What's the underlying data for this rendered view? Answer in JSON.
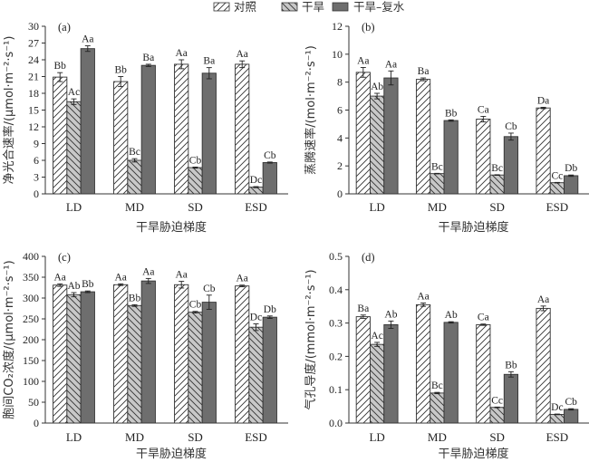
{
  "legend": {
    "items": [
      {
        "label": "对照",
        "pattern": "fwd-hatch",
        "fill": "#ffffff"
      },
      {
        "label": "干旱",
        "pattern": "back-hatch",
        "fill": "#c8c8c8"
      },
      {
        "label": "干旱–复水",
        "pattern": "solid",
        "fill": "#6e6e6e"
      }
    ]
  },
  "colors": {
    "control": "#ffffff",
    "drought": "#c8c8c8",
    "recovery": "#6e6e6e",
    "ink": "#222222"
  },
  "chart_data": [
    {
      "type": "bar",
      "panel_label": "(a)",
      "title": "",
      "xlabel": "干旱胁迫梯度",
      "ylabel": "净光合速率/(μmol·m⁻²·s⁻¹)",
      "ylim": [
        0,
        30
      ],
      "yticks": [
        0,
        3,
        6,
        9,
        12,
        15,
        18,
        21,
        24,
        27,
        30
      ],
      "ytick_labels": [
        "0",
        "3",
        "6",
        "9",
        "12",
        "15",
        "18",
        "21",
        "24",
        "27",
        "30"
      ],
      "categories": [
        "LD",
        "MD",
        "SD",
        "ESD"
      ],
      "grid": false,
      "series": [
        {
          "name": "对照",
          "values": [
            20.9,
            20.1,
            23.2,
            23.2
          ],
          "errors": [
            0.8,
            0.9,
            0.8,
            0.6
          ],
          "labels": [
            "Bb",
            "Bb",
            "Aa",
            "Aa"
          ]
        },
        {
          "name": "干旱",
          "values": [
            16.5,
            6.0,
            4.7,
            1.2
          ],
          "errors": [
            0.5,
            0.3,
            0.1,
            0.1
          ],
          "labels": [
            "Ac",
            "Bc",
            "Cb",
            "Dc"
          ]
        },
        {
          "name": "干旱–复水",
          "values": [
            26.0,
            23.0,
            21.6,
            5.6
          ],
          "errors": [
            0.5,
            0.2,
            1.0,
            0.1
          ],
          "labels": [
            "Aa",
            "Ba",
            "Ba",
            "Cb"
          ]
        }
      ]
    },
    {
      "type": "bar",
      "panel_label": "(b)",
      "title": "",
      "xlabel": "干旱胁迫梯度",
      "ylabel": "蒸腾速率/(mol·m⁻²·s⁻¹)",
      "ylim": [
        0,
        12
      ],
      "yticks": [
        0,
        2,
        4,
        6,
        8,
        10,
        12
      ],
      "ytick_labels": [
        "0",
        "2",
        "4",
        "6",
        "8",
        "10",
        "12"
      ],
      "categories": [
        "LD",
        "MD",
        "SD",
        "ESD"
      ],
      "grid": false,
      "series": [
        {
          "name": "对照",
          "values": [
            8.7,
            8.2,
            5.35,
            6.15
          ],
          "errors": [
            0.35,
            0.1,
            0.2,
            0.05
          ],
          "labels": [
            "Aa",
            "Ba",
            "Ca",
            "Da"
          ]
        },
        {
          "name": "干旱",
          "values": [
            7.0,
            1.45,
            1.35,
            0.8
          ],
          "errors": [
            0.2,
            0.02,
            0.02,
            0.02
          ],
          "labels": [
            "Ab",
            "Bc",
            "Bc",
            "Cc"
          ]
        },
        {
          "name": "干旱–复水",
          "values": [
            8.3,
            5.25,
            4.1,
            1.3
          ],
          "errors": [
            0.5,
            0.05,
            0.25,
            0.05
          ],
          "labels": [
            "Aa",
            "Bb",
            "Cb",
            "Db"
          ]
        }
      ]
    },
    {
      "type": "bar",
      "panel_label": "(c)",
      "title": "",
      "xlabel": "干旱胁迫梯度",
      "ylabel": "胞间CO₂浓度/(μmol·m⁻²·s⁻¹)",
      "ylim": [
        0,
        400
      ],
      "yticks": [
        0,
        50,
        100,
        150,
        200,
        250,
        300,
        350,
        400
      ],
      "ytick_labels": [
        "0",
        "50",
        "100",
        "150",
        "200",
        "250",
        "300",
        "350",
        "400"
      ],
      "categories": [
        "LD",
        "MD",
        "SD",
        "ESD"
      ],
      "grid": false,
      "series": [
        {
          "name": "对照",
          "values": [
            331,
            332,
            332,
            329
          ],
          "errors": [
            3,
            2,
            8,
            2
          ],
          "labels": [
            "Aa",
            "Aa",
            "Aa",
            "Aa"
          ]
        },
        {
          "name": "干旱",
          "values": [
            308,
            282,
            266,
            230
          ],
          "errors": [
            5,
            2,
            2,
            8
          ],
          "labels": [
            "Ab",
            "Bb",
            "Cb",
            "Dc"
          ]
        },
        {
          "name": "干旱–复水",
          "values": [
            315,
            341,
            290,
            254
          ],
          "errors": [
            2,
            6,
            17,
            3
          ],
          "labels": [
            "Bb",
            "Aa",
            "Cb",
            "Db"
          ]
        }
      ]
    },
    {
      "type": "bar",
      "panel_label": "(d)",
      "title": "",
      "xlabel": "干旱胁迫梯度",
      "ylabel": "气孔导度/(mmol·m⁻²·s⁻¹)",
      "ylim": [
        0,
        0.5
      ],
      "yticks": [
        0,
        0.1,
        0.2,
        0.3,
        0.4,
        0.5
      ],
      "ytick_labels": [
        "0.0",
        "0.1",
        "0.2",
        "0.3",
        "0.4",
        "0.5"
      ],
      "categories": [
        "LD",
        "MD",
        "SD",
        "ESD"
      ],
      "grid": false,
      "series": [
        {
          "name": "对照",
          "values": [
            0.319,
            0.355,
            0.295,
            0.344
          ],
          "errors": [
            0.005,
            0.005,
            0.002,
            0.007
          ],
          "labels": [
            "Ba",
            "Aa",
            "Ca",
            "Aa"
          ]
        },
        {
          "name": "干旱",
          "values": [
            0.236,
            0.09,
            0.047,
            0.026
          ],
          "errors": [
            0.006,
            0.002,
            0.001,
            0.001
          ],
          "labels": [
            "Ac",
            "Bc",
            "Cc",
            "Dc"
          ]
        },
        {
          "name": "干旱–复水",
          "values": [
            0.295,
            0.302,
            0.146,
            0.041
          ],
          "errors": [
            0.011,
            0.002,
            0.008,
            0.002
          ],
          "labels": [
            "Ab",
            "Ab",
            "Bb",
            "Cb"
          ]
        }
      ]
    }
  ]
}
